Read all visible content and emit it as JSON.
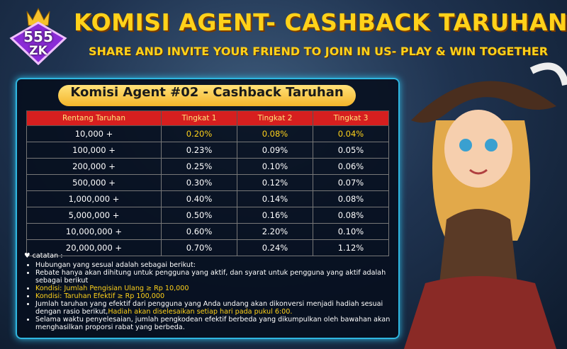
{
  "logo": {
    "number": "555",
    "text": "ZK"
  },
  "header": {
    "title": "KOMISI AGENT- CASHBACK TARUHAN",
    "subtitle": "SHARE AND INVITE YOUR FRIEND TO JOIN IN US- PLAY & WIN TOGETHER"
  },
  "panel": {
    "title": "Komisi Agent #02 - Cashback Taruhan"
  },
  "table": {
    "columns": [
      "Rentang Taruhan",
      "Tingkat 1",
      "Tingkat 2",
      "Tingkat 3"
    ],
    "rows": [
      [
        "10,000 +",
        "0.20%",
        "0.08%",
        "0.04%"
      ],
      [
        "100,000 +",
        "0.23%",
        "0.09%",
        "0.05%"
      ],
      [
        "200,000 +",
        "0.25%",
        "0.10%",
        "0.06%"
      ],
      [
        "500,000 +",
        "0.30%",
        "0.12%",
        "0.07%"
      ],
      [
        "1,000,000 +",
        "0.40%",
        "0.14%",
        "0.08%"
      ],
      [
        "5,000,000 +",
        "0.50%",
        "0.16%",
        "0.08%"
      ],
      [
        "10,000,000 +",
        "0.60%",
        "2.20%",
        "0.10%"
      ],
      [
        "20,000,000 +",
        "0.70%",
        "0.24%",
        "1.12%"
      ]
    ]
  },
  "notes": {
    "title": "catatan :",
    "items": [
      {
        "text": "Hubungan yang sesual adalah sebagai berikut:"
      },
      {
        "text": "Rebate hanya akan dihitung untuk pengguna yang aktif, dan syarat untuk pengguna yang aktif adalah sebagai berikut"
      },
      {
        "highlight": "Kondisi: Jumlah Pengisian Ulang ≥ Rp 10,000"
      },
      {
        "highlight": "Kondisi: Taruhan Efektif ≥ Rp 100,000"
      },
      {
        "text": "Jumlah taruhan yang efektif dari pengguna yang Anda undang akan dikonversi menjadi hadiah sesuai dengan rasio berikut,",
        "highlight": "Hadiah akan diselesaikan setiap hari pada pukul 6:00."
      },
      {
        "text": "Selama waktu penyelesaian, jumlah pengkodean efektif berbeda yang dikumpulkan oleh bawahan akan menghasilkan proporsi rabat yang berbeda."
      }
    ]
  }
}
